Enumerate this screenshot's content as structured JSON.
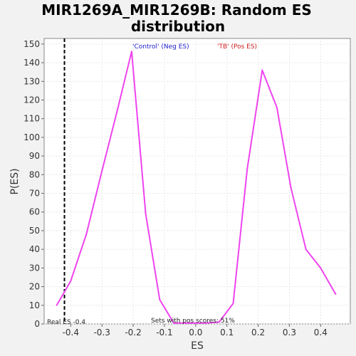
{
  "chart_data": {
    "type": "line",
    "title_lines": [
      "MIR1269A_MIR1269B: Random ES",
      "distribution"
    ],
    "xlabel": "ES",
    "ylabel": "P(ES)",
    "xlim": [
      -0.485,
      0.495
    ],
    "ylim": [
      0,
      153
    ],
    "xticks": [
      -0.4,
      -0.3,
      -0.2,
      -0.1,
      0.0,
      0.1,
      0.2,
      0.3,
      0.4
    ],
    "xtick_labels": [
      "-0.4",
      "-0.3",
      "-0.2",
      "-0.1",
      "0.0",
      "0.1",
      "0.2",
      "0.3",
      "0.4"
    ],
    "yticks": [
      0,
      10,
      20,
      30,
      40,
      50,
      60,
      70,
      80,
      90,
      100,
      110,
      120,
      130,
      140,
      150
    ],
    "ytick_labels": [
      "0",
      "10",
      "20",
      "30",
      "40",
      "50",
      "60",
      "70",
      "80",
      "90",
      "100",
      "110",
      "120",
      "130",
      "140",
      "150"
    ],
    "grid": true,
    "series": [
      {
        "color": "#ee44ee",
        "x": [
          -0.445,
          -0.4,
          -0.35,
          -0.3,
          -0.25,
          -0.205,
          -0.16,
          -0.115,
          -0.07,
          -0.02,
          0.03,
          0.075,
          0.12,
          0.165,
          0.213,
          0.26,
          0.305,
          0.353,
          0.4,
          0.448
        ],
        "y": [
          10,
          23,
          48,
          82,
          115,
          146,
          59,
          13,
          0.5,
          0.5,
          0.5,
          1,
          11,
          83,
          136,
          116,
          73,
          40,
          30,
          16
        ]
      }
    ],
    "legend": [
      {
        "label": "'Control' (Neg ES)",
        "color": "#2222cc"
      },
      {
        "label": "'TB' (Pos ES)",
        "color": "#cc2222"
      }
    ],
    "real_es": {
      "value": -0.42,
      "label": "Real ES -0.4"
    },
    "footnote": "Sets with pos scores: 51%"
  }
}
